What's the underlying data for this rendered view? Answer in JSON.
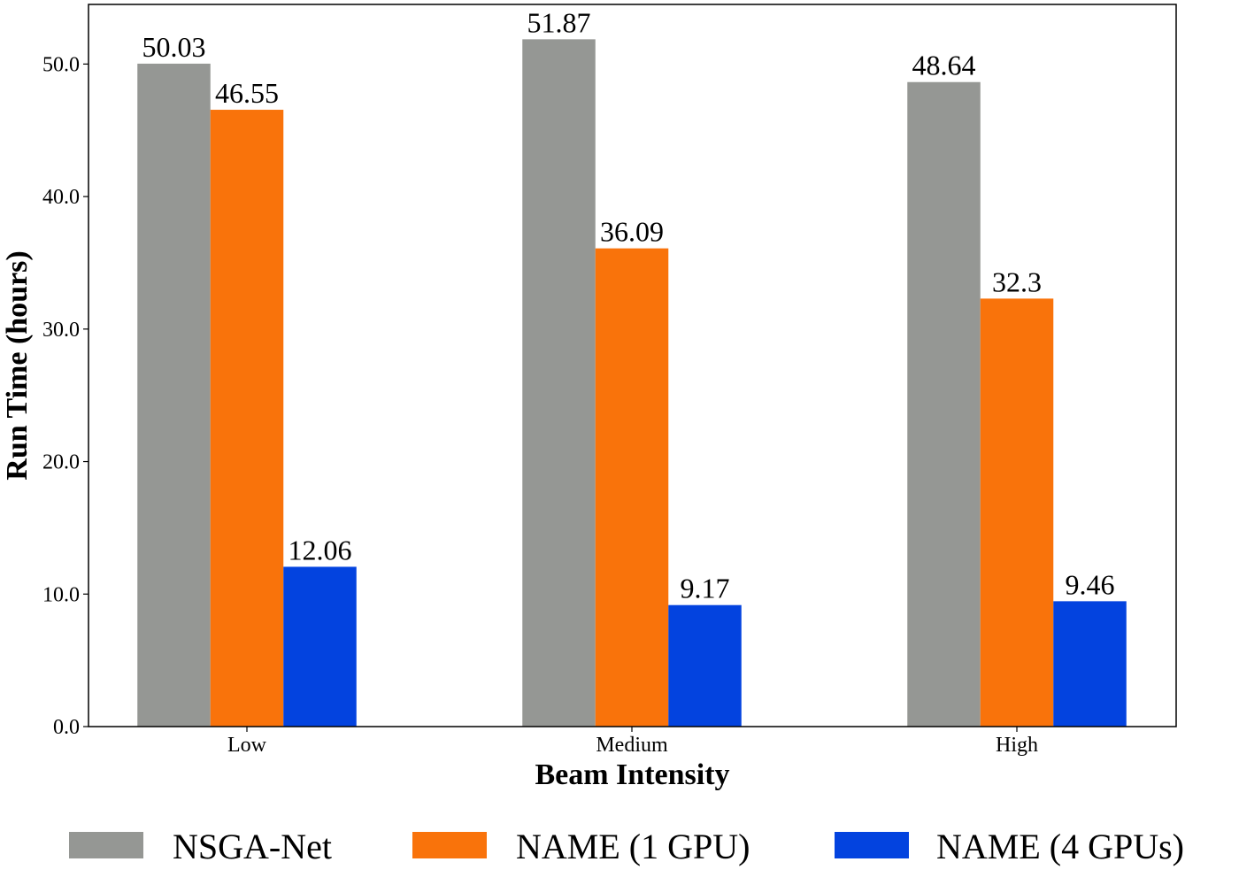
{
  "chart_data": {
    "type": "bar",
    "categories": [
      "Low",
      "Medium",
      "High"
    ],
    "series": [
      {
        "name": "NSGA-Net",
        "values": [
          50.03,
          51.87,
          48.64
        ],
        "labels": [
          "50.03",
          "51.87",
          "48.64"
        ],
        "color": "#959794"
      },
      {
        "name": "NAME (1 GPU)",
        "values": [
          46.55,
          36.09,
          32.3
        ],
        "labels": [
          "46.55",
          "36.09",
          "32.3"
        ],
        "color": "#f9730b"
      },
      {
        "name": "NAME (4 GPUs)",
        "values": [
          12.06,
          9.17,
          9.46
        ],
        "labels": [
          "12.06",
          "9.17",
          "9.46"
        ],
        "color": "#0343df"
      }
    ],
    "xlabel": "Beam Intensity",
    "ylabel": "Run Time (hours)",
    "ylim": [
      0,
      54.5
    ],
    "yticks": [
      0,
      10,
      20,
      30,
      40,
      50
    ],
    "ytick_labels": [
      "0.0",
      "10.0",
      "20.0",
      "30.0",
      "40.0",
      "50.0"
    ],
    "grid": false,
    "legend_position": "bottom"
  }
}
